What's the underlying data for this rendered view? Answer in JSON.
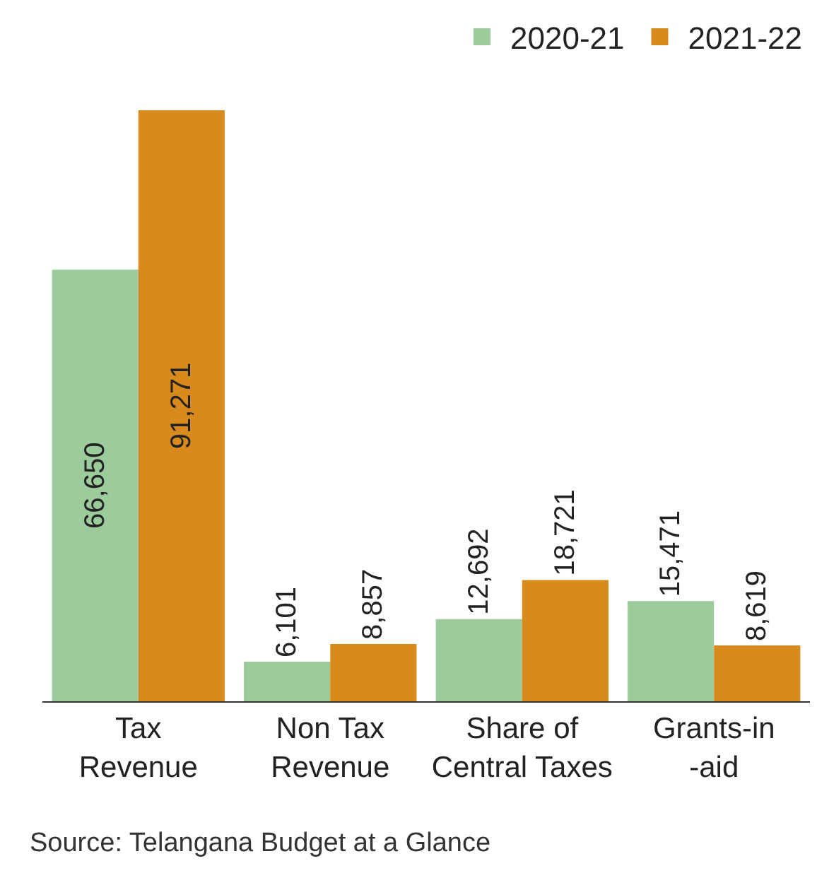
{
  "chart_data": {
    "type": "bar",
    "categories": [
      "Tax Revenue",
      "Non Tax Revenue",
      "Share of Central Taxes",
      "Grants-in-aid"
    ],
    "series": [
      {
        "name": "2020-21",
        "color": "#9ccb9c",
        "values": [
          66650,
          6101,
          12692,
          15471
        ],
        "value_labels": [
          "66,650",
          "6,101",
          "12,692",
          "15,471"
        ]
      },
      {
        "name": "2021-22",
        "color": "#d88a1d",
        "values": [
          91271,
          8857,
          18721,
          8619
        ],
        "value_labels": [
          "91,271",
          "8,857",
          "18,721",
          "8,619"
        ]
      }
    ],
    "legend": "top right",
    "grid": false,
    "annotations": [
      "Source: Telangana Budget at a Glance"
    ]
  }
}
